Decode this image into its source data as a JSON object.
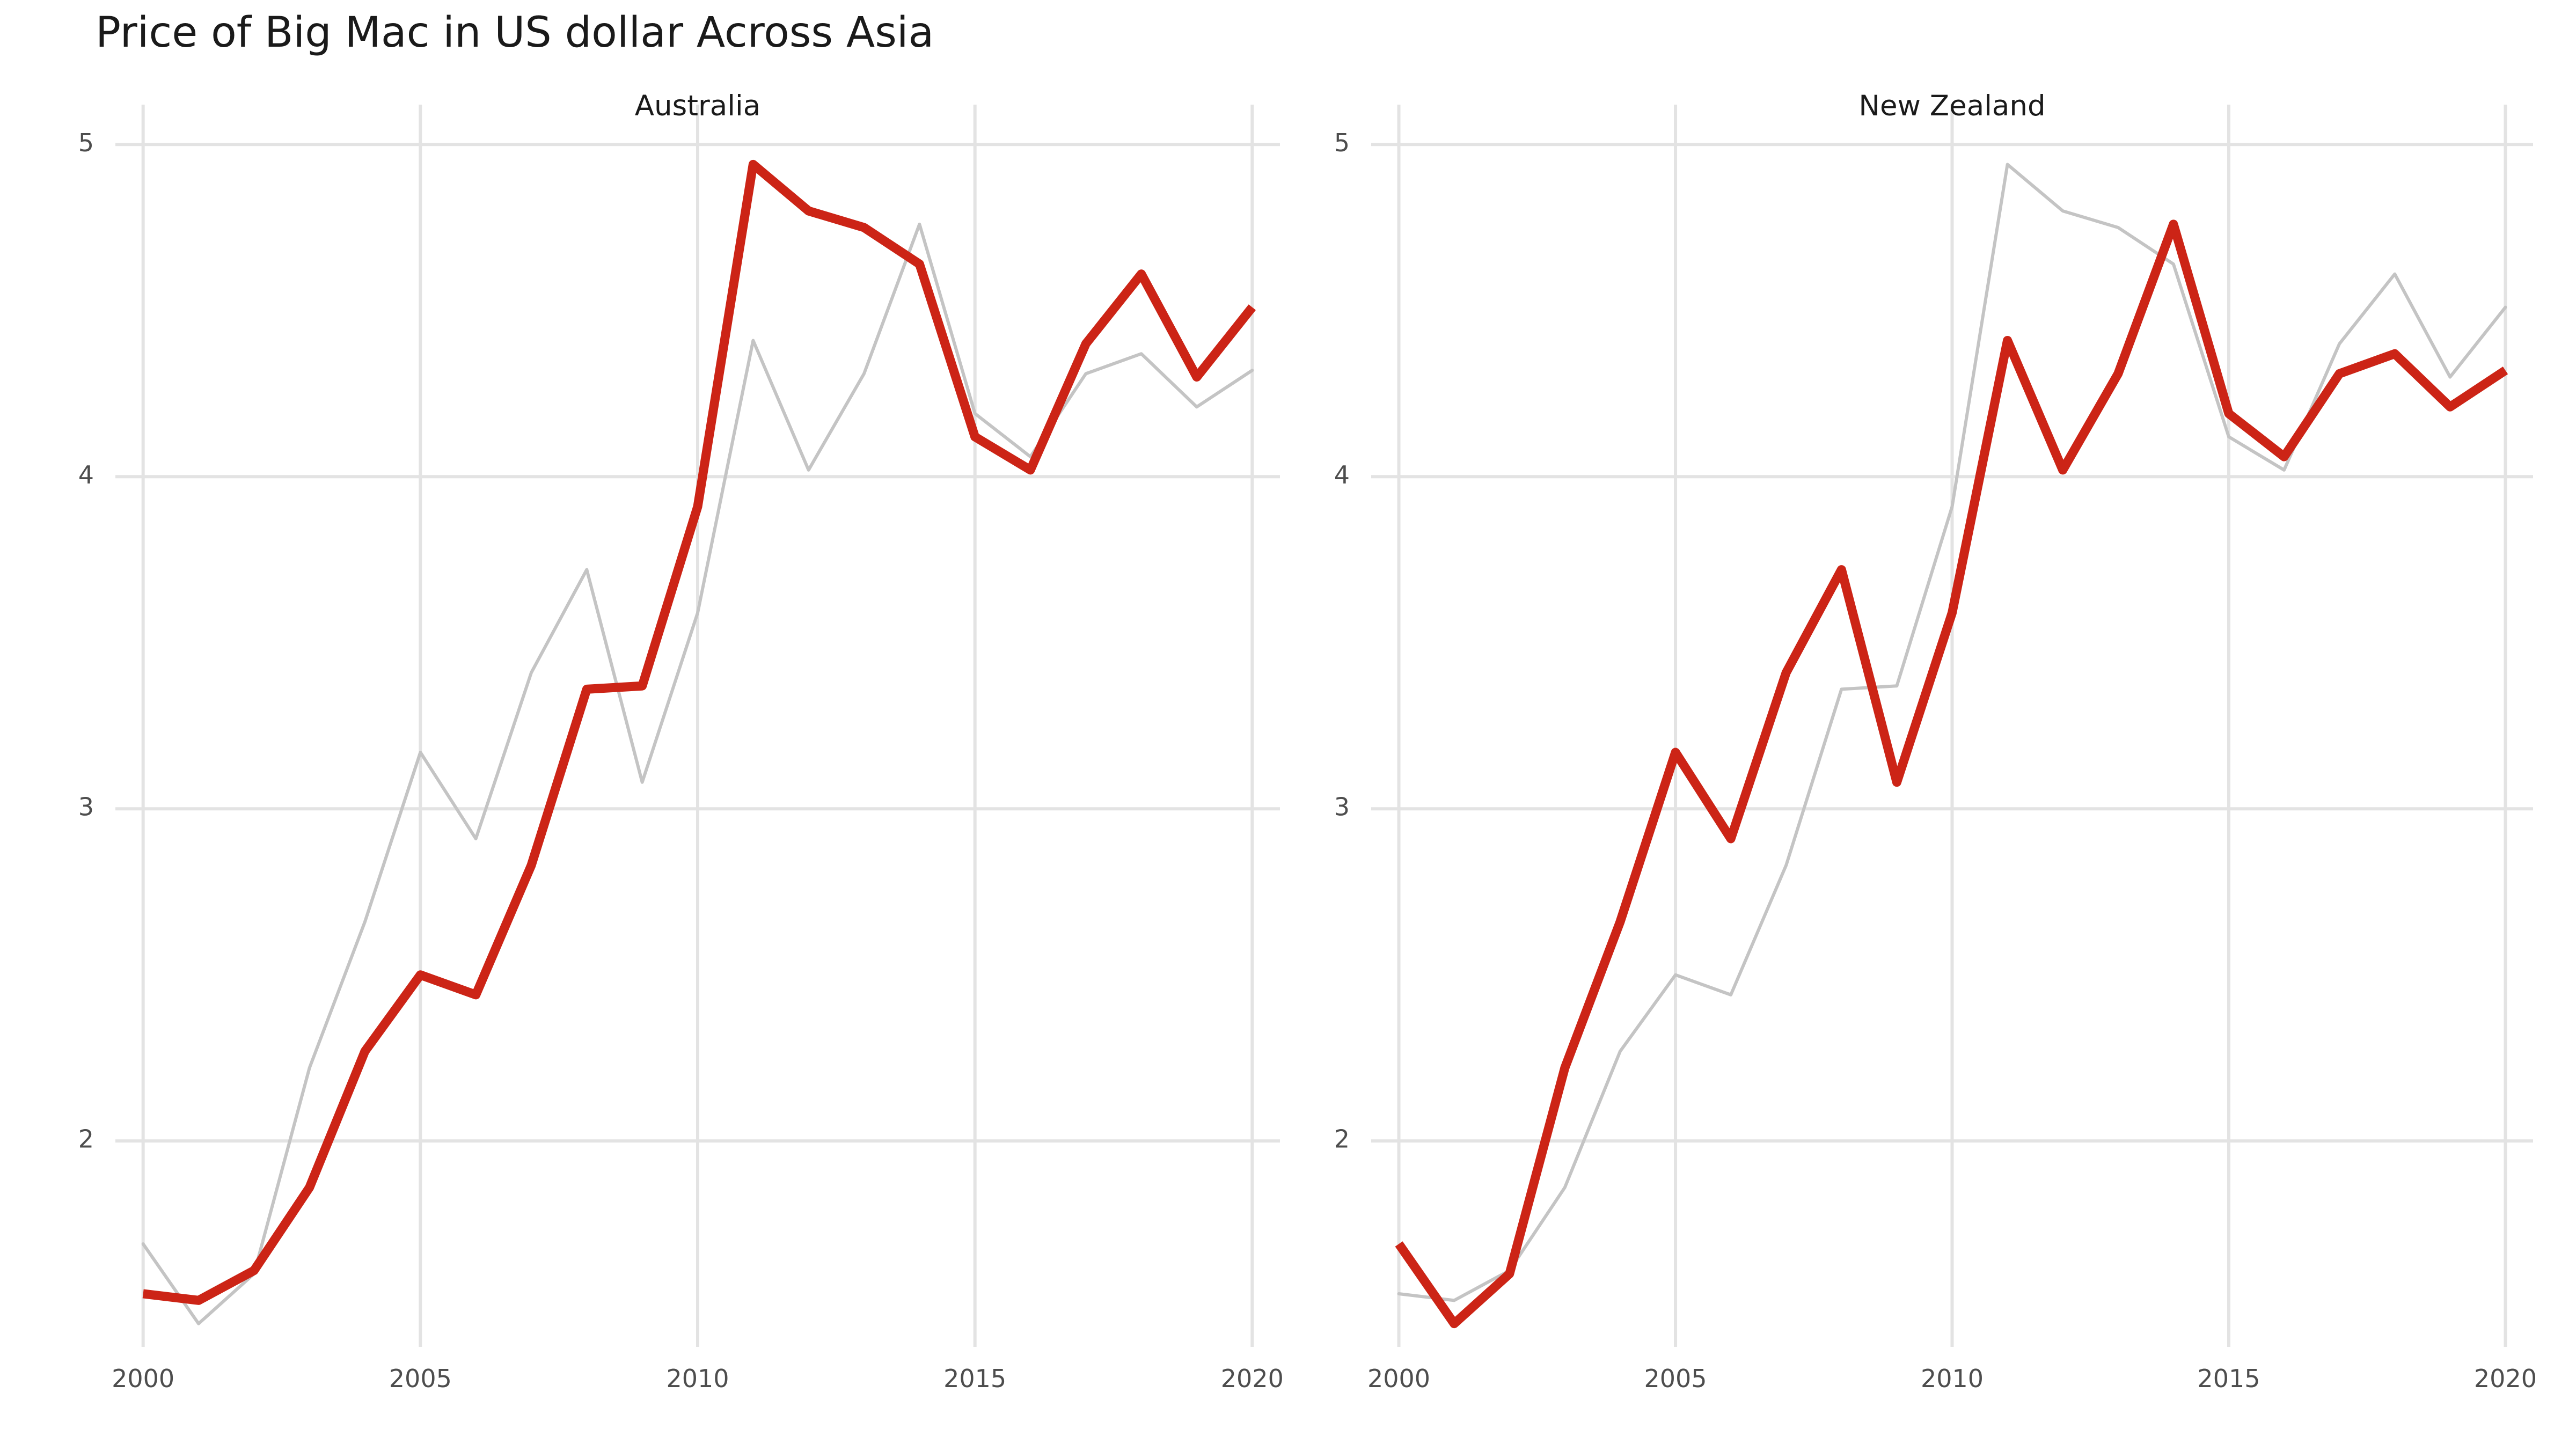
{
  "chart_data": {
    "type": "line",
    "title": "Price of Big Mac in US dollar Across Asia",
    "xlabel": "",
    "ylabel": "",
    "x": [
      2000,
      2001,
      2002,
      2003,
      2004,
      2005,
      2006,
      2007,
      2008,
      2009,
      2010,
      2011,
      2012,
      2013,
      2014,
      2015,
      2016,
      2017,
      2018,
      2019,
      2020
    ],
    "xlim": [
      1999.5,
      2020.5
    ],
    "ylim": [
      1.38,
      5.12
    ],
    "x_ticks": [
      2000,
      2005,
      2010,
      2015,
      2020
    ],
    "y_ticks": [
      2,
      3,
      4,
      5
    ],
    "x_tick_labels": [
      "2000",
      "2005",
      "2010",
      "2015",
      "2020"
    ],
    "y_tick_labels": [
      "2",
      "3",
      "4",
      "5"
    ],
    "grid": true,
    "colors": {
      "highlight": "#cc2416",
      "context": "#c4c4c4",
      "grid": "#e3e3e3"
    },
    "panels": [
      {
        "name": "Australia",
        "highlight_values": [
          1.54,
          1.52,
          1.61,
          1.86,
          2.27,
          2.5,
          2.44,
          2.83,
          3.36,
          3.37,
          3.91,
          4.94,
          4.8,
          4.75,
          4.64,
          4.12,
          4.02,
          4.4,
          4.61,
          4.3,
          4.51
        ],
        "context_values": [
          1.69,
          1.45,
          1.6,
          2.22,
          2.66,
          3.17,
          2.91,
          3.41,
          3.72,
          3.08,
          3.59,
          4.41,
          4.02,
          4.31,
          4.76,
          4.19,
          4.06,
          4.31,
          4.37,
          4.21,
          4.32
        ]
      },
      {
        "name": "New Zealand",
        "highlight_values": [
          1.69,
          1.45,
          1.6,
          2.22,
          2.66,
          3.17,
          2.91,
          3.41,
          3.72,
          3.08,
          3.59,
          4.41,
          4.02,
          4.31,
          4.76,
          4.19,
          4.06,
          4.31,
          4.37,
          4.21,
          4.32
        ],
        "context_values": [
          1.54,
          1.52,
          1.61,
          1.86,
          2.27,
          2.5,
          2.44,
          2.83,
          3.36,
          3.37,
          3.91,
          4.94,
          4.8,
          4.75,
          4.64,
          4.12,
          4.02,
          4.4,
          4.61,
          4.3,
          4.51
        ]
      }
    ]
  }
}
